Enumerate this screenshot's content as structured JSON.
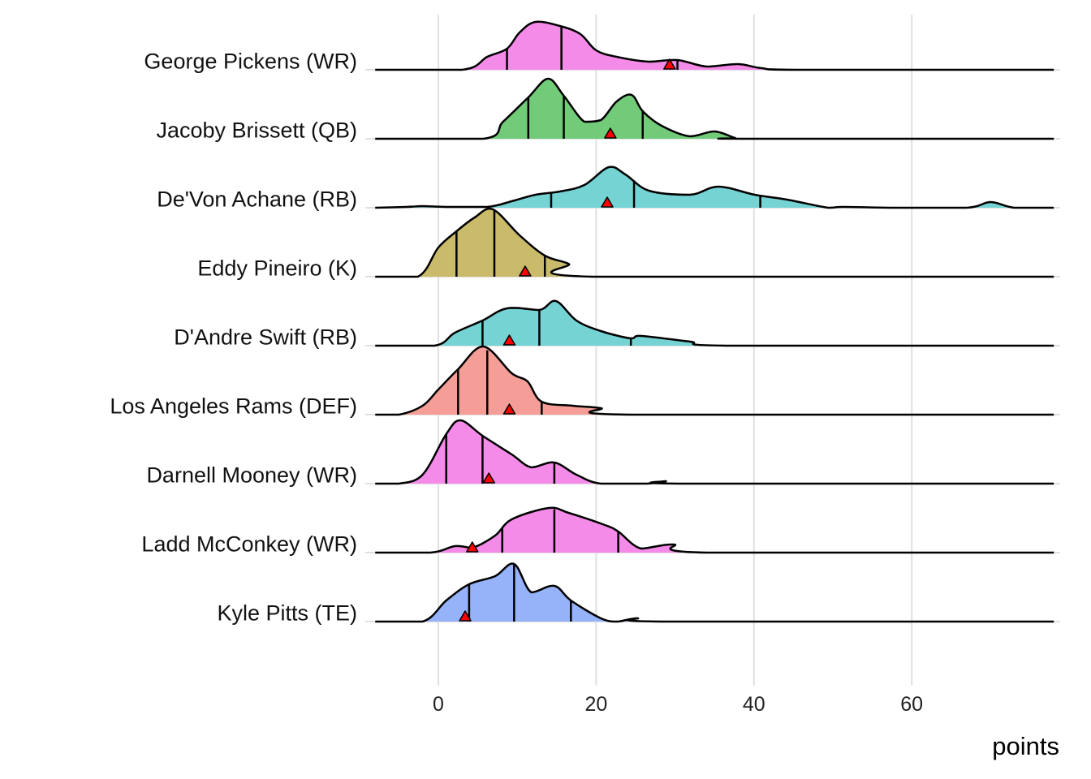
{
  "chart_data": {
    "type": "ridgeline",
    "title": "",
    "xlabel": "points",
    "ylabel": "",
    "xlim": [
      -8,
      78
    ],
    "x_ticks": [
      0,
      20,
      40,
      60
    ],
    "x_tick_labels": [
      "0",
      "20",
      "40",
      "60"
    ],
    "grid": true,
    "density_scale_note": "relative density heights",
    "series": [
      {
        "name": "George Pickens (WR)",
        "color": "#F58BE8",
        "quantiles": [
          8.7,
          15.6,
          30.3
        ],
        "marker": 29.3,
        "density": [
          [
            -8,
            0
          ],
          [
            3,
            0
          ],
          [
            6.2,
            0.16
          ],
          [
            8.7,
            0.26
          ],
          [
            10.3,
            0.46
          ],
          [
            12.3,
            0.59
          ],
          [
            15.4,
            0.54
          ],
          [
            18,
            0.44
          ],
          [
            20,
            0.24
          ],
          [
            22.6,
            0.16
          ],
          [
            26.7,
            0.1
          ],
          [
            30.3,
            0.12
          ],
          [
            34,
            0.04
          ],
          [
            38,
            0.07
          ],
          [
            41,
            0.02
          ],
          [
            46,
            0
          ],
          [
            78,
            0
          ]
        ]
      },
      {
        "name": "Jacoby Brissett (QB)",
        "color": "#72CB78",
        "quantiles": [
          11.4,
          15.9,
          25.9
        ],
        "marker": 21.8,
        "density": [
          [
            -8,
            0
          ],
          [
            5.7,
            0
          ],
          [
            8.2,
            0.21
          ],
          [
            11.4,
            0.51
          ],
          [
            13.9,
            0.74
          ],
          [
            15.9,
            0.53
          ],
          [
            18.5,
            0.21
          ],
          [
            20.6,
            0.23
          ],
          [
            22.6,
            0.46
          ],
          [
            24.5,
            0.54
          ],
          [
            25.9,
            0.34
          ],
          [
            28.3,
            0.16
          ],
          [
            31.9,
            0.03
          ],
          [
            35,
            0.09
          ],
          [
            37.6,
            0.01
          ],
          [
            38.6,
            0
          ],
          [
            78,
            0
          ]
        ]
      },
      {
        "name": "De'Von Achane (RB)",
        "color": "#75D3D4",
        "quantiles": [
          14.3,
          24.8,
          40.8
        ],
        "marker": 21.4,
        "density": [
          [
            -8,
            0
          ],
          [
            -4,
            0.01
          ],
          [
            -2,
            0.02
          ],
          [
            1,
            0.01
          ],
          [
            6.2,
            0.01
          ],
          [
            9.3,
            0.08
          ],
          [
            12.3,
            0.16
          ],
          [
            15.4,
            0.2
          ],
          [
            18.5,
            0.28
          ],
          [
            21.6,
            0.5
          ],
          [
            23.7,
            0.41
          ],
          [
            26.7,
            0.21
          ],
          [
            31.9,
            0.16
          ],
          [
            35.5,
            0.26
          ],
          [
            40.1,
            0.16
          ],
          [
            44.2,
            0.1
          ],
          [
            49.4,
            0
          ],
          [
            51.4,
            0.01
          ],
          [
            57.6,
            0
          ],
          [
            66.9,
            0
          ],
          [
            70,
            0.07
          ],
          [
            73,
            0
          ],
          [
            78,
            0
          ]
        ]
      },
      {
        "name": "Eddy Pineiro (K)",
        "color": "#C9BB6A",
        "quantiles": [
          2.3,
          7.1,
          13.5
        ],
        "marker": 11.0,
        "density": [
          [
            -8,
            0
          ],
          [
            -2.6,
            0
          ],
          [
            0,
            0.36
          ],
          [
            2.3,
            0.56
          ],
          [
            4.6,
            0.73
          ],
          [
            6.9,
            0.83
          ],
          [
            10.3,
            0.51
          ],
          [
            13.5,
            0.26
          ],
          [
            16.5,
            0.16
          ],
          [
            19.5,
            0
          ],
          [
            78,
            0
          ]
        ]
      },
      {
        "name": "D'Andre Swift (RB)",
        "color": "#75D3D4",
        "quantiles": [
          5.6,
          12.8,
          24.4
        ],
        "marker": 9.0,
        "density": [
          [
            -8,
            0
          ],
          [
            -0.5,
            0
          ],
          [
            2.1,
            0.16
          ],
          [
            5.6,
            0.31
          ],
          [
            8.7,
            0.46
          ],
          [
            12.8,
            0.44
          ],
          [
            14.9,
            0.55
          ],
          [
            17.5,
            0.31
          ],
          [
            20.6,
            0.18
          ],
          [
            24.4,
            0.09
          ],
          [
            25.7,
            0.12
          ],
          [
            31.9,
            0.05
          ],
          [
            37,
            0
          ],
          [
            78,
            0
          ]
        ]
      },
      {
        "name": "Los Angeles Rams (DEF)",
        "color": "#F59E97",
        "quantiles": [
          2.5,
          6.2,
          13.1
        ],
        "marker": 9.0,
        "density": [
          [
            -8,
            0
          ],
          [
            -5,
            0
          ],
          [
            -2,
            0.11
          ],
          [
            0,
            0.31
          ],
          [
            2.5,
            0.56
          ],
          [
            5.7,
            0.84
          ],
          [
            9.3,
            0.51
          ],
          [
            11.3,
            0.41
          ],
          [
            13.1,
            0.16
          ],
          [
            17,
            0.11
          ],
          [
            20.6,
            0.08
          ],
          [
            24.2,
            0
          ],
          [
            78,
            0
          ]
        ]
      },
      {
        "name": "Darnell Mooney (WR)",
        "color": "#F58BE8",
        "quantiles": [
          1.0,
          5.6,
          14.7
        ],
        "marker": 6.4,
        "density": [
          [
            -8,
            0
          ],
          [
            -5,
            0
          ],
          [
            -2,
            0.11
          ],
          [
            1,
            0.61
          ],
          [
            2.8,
            0.78
          ],
          [
            5.6,
            0.59
          ],
          [
            9.3,
            0.36
          ],
          [
            11.8,
            0.2
          ],
          [
            14.7,
            0.26
          ],
          [
            17.5,
            0.11
          ],
          [
            20.6,
            0
          ],
          [
            26.5,
            0
          ],
          [
            28.8,
            0.03
          ],
          [
            31,
            0
          ],
          [
            78,
            0
          ]
        ]
      },
      {
        "name": "Ladd McConkey (WR)",
        "color": "#F58BE8",
        "quantiles": [
          8.1,
          14.7,
          22.8
        ],
        "marker": 4.3,
        "density": [
          [
            -8,
            0
          ],
          [
            -1,
            0
          ],
          [
            2.1,
            0.08
          ],
          [
            4.3,
            0.06
          ],
          [
            7.2,
            0.21
          ],
          [
            9.3,
            0.41
          ],
          [
            14,
            0.55
          ],
          [
            16.5,
            0.49
          ],
          [
            21.1,
            0.34
          ],
          [
            22.8,
            0.26
          ],
          [
            25.7,
            0.05
          ],
          [
            29.8,
            0.1
          ],
          [
            34,
            0
          ],
          [
            78,
            0
          ]
        ]
      },
      {
        "name": "Kyle Pitts (TE)",
        "color": "#96B3F9",
        "quantiles": [
          3.9,
          9.6,
          16.8
        ],
        "marker": 3.4,
        "density": [
          [
            -8,
            0
          ],
          [
            -2,
            0
          ],
          [
            1,
            0.26
          ],
          [
            3.9,
            0.46
          ],
          [
            7.2,
            0.56
          ],
          [
            9.6,
            0.71
          ],
          [
            11.8,
            0.36
          ],
          [
            14.7,
            0.44
          ],
          [
            16.8,
            0.26
          ],
          [
            20.6,
            0.04
          ],
          [
            22.6,
            0
          ],
          [
            25.2,
            0.04
          ],
          [
            28.8,
            0
          ],
          [
            78,
            0
          ]
        ]
      }
    ]
  }
}
